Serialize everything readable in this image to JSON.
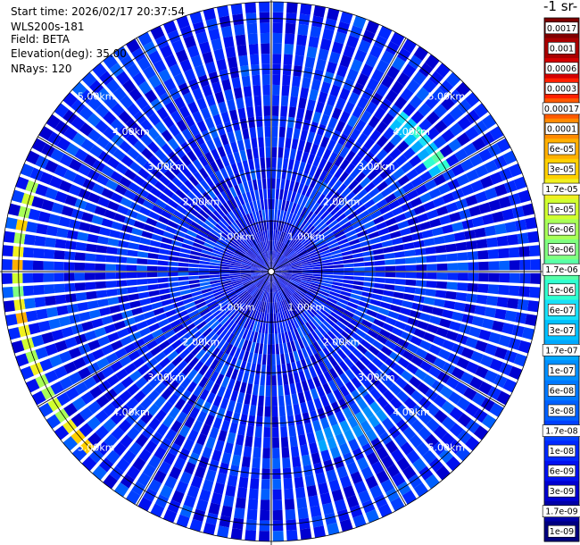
{
  "header": {
    "start_time": "Start time: 2026/02/17 20:37:54",
    "device": "WLS200s-181",
    "field": "Field: BETA",
    "elevation": "Elevation(deg): 35.00",
    "nrays": "NRays: 120"
  },
  "colorbar": {
    "title": "-1 sr-",
    "ticks": [
      "0.0017",
      "0.001",
      "0.0006",
      "0.0003",
      "0.00017",
      "0.0001",
      "6e-05",
      "3e-05",
      "1.7e-05",
      "1e-05",
      "6e-06",
      "3e-06",
      "1.7e-06",
      "1e-06",
      "6e-07",
      "3e-07",
      "1.7e-07",
      "1e-07",
      "6e-08",
      "3e-08",
      "1.7e-08",
      "1e-08",
      "6e-09",
      "3e-09",
      "1.7e-09",
      "1e-09"
    ],
    "colors": [
      "#7f0000",
      "#a80000",
      "#d40000",
      "#ff2000",
      "#ff5a00",
      "#ff8a00",
      "#ffb000",
      "#ffd000",
      "#f0f020",
      "#d0ff30",
      "#a8ff58",
      "#80ff80",
      "#58ffa8",
      "#30ffd0",
      "#18e0f8",
      "#00c0ff",
      "#00a8ff",
      "#0090ff",
      "#0078ff",
      "#0060ff",
      "#0040ff",
      "#0028ff",
      "#0010f0",
      "#0000d0",
      "#0000a8",
      "#000080"
    ]
  },
  "chart_data": {
    "type": "heatmap",
    "projection": "polar-ppi",
    "field": "BETA",
    "n_rays": 120,
    "range_rings_km": [
      1,
      2,
      3,
      4,
      5
    ],
    "ring_labels": [
      "1.00km",
      "2.00km",
      "3.00km",
      "4.00km",
      "5.00km"
    ],
    "color_scale": "log",
    "value_range": [
      1e-09,
      0.0017
    ],
    "typical_value": 1e-08,
    "features": [
      {
        "description": "band",
        "range_km": [
          4.9,
          5.2
        ],
        "azimuth_deg": [
          225,
          290
        ],
        "value_max": 0.0003
      },
      {
        "description": "band",
        "range_km": [
          3.6,
          4.2
        ],
        "azimuth_deg": [
          40,
          60
        ],
        "value_max": 1e-05
      },
      {
        "description": "band",
        "range_km": [
          3.0,
          4.0
        ],
        "azimuth_deg": [
          140,
          165
        ],
        "value_max": 3e-07
      }
    ]
  }
}
